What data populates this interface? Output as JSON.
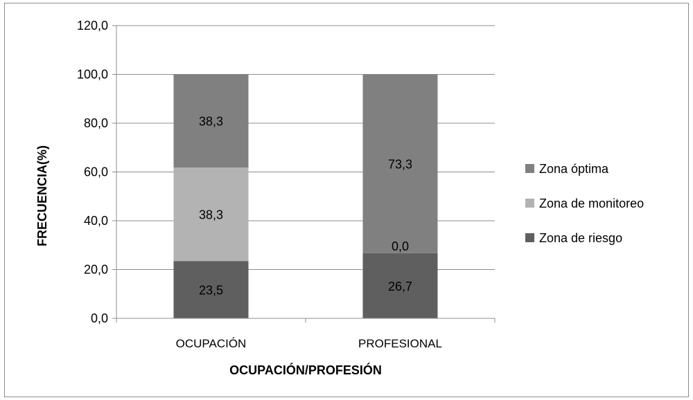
{
  "chart_data": {
    "type": "bar",
    "stacked": true,
    "categories": [
      "OCUPACIÓN",
      "PROFESIONAL"
    ],
    "series": [
      {
        "name": "Zona de riesgo",
        "values": [
          23.5,
          26.7
        ],
        "labels": [
          "23,5",
          "26,7"
        ],
        "color": "#5f5f5f"
      },
      {
        "name": "Zona de monitoreo",
        "values": [
          38.3,
          0.0
        ],
        "labels": [
          "38,3",
          "0,0"
        ],
        "color": "#b3b3b3"
      },
      {
        "name": "Zona óptima",
        "values": [
          38.3,
          73.3
        ],
        "labels": [
          "38,3",
          "73,3"
        ],
        "color": "#808080"
      }
    ],
    "xlabel": "OCUPACIÓN/PROFESIÓN",
    "ylabel": "FRECUENCIA(%)",
    "ylim": [
      0,
      120
    ],
    "yticks": [
      0,
      20,
      40,
      60,
      80,
      100,
      120
    ],
    "ytick_labels": [
      "0,0",
      "20,0",
      "40,0",
      "60,0",
      "80,0",
      "100,0",
      "120,0"
    ],
    "grid": true,
    "legend_position": "right"
  }
}
